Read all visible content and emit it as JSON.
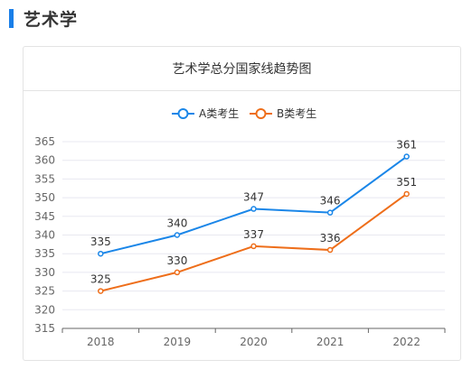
{
  "section": {
    "title": "艺术学"
  },
  "colors": {
    "accent": "#1a7fe8",
    "seriesA": "#1a86e8",
    "seriesB": "#ee6e1a",
    "grid": "#e8e8f0",
    "axis": "#666666"
  },
  "chart_data": {
    "type": "line",
    "title": "艺术学总分国家线趋势图",
    "categories": [
      "2018",
      "2019",
      "2020",
      "2021",
      "2022"
    ],
    "series": [
      {
        "name": "A类考生",
        "values": [
          335,
          340,
          347,
          346,
          361
        ]
      },
      {
        "name": "B类考生",
        "values": [
          325,
          330,
          337,
          336,
          351
        ]
      }
    ],
    "ylim": [
      315,
      365
    ],
    "yticks": [
      315,
      320,
      325,
      330,
      335,
      340,
      345,
      350,
      355,
      360,
      365
    ],
    "grid": true,
    "legend": "top-center",
    "xlabel": "",
    "ylabel": ""
  }
}
